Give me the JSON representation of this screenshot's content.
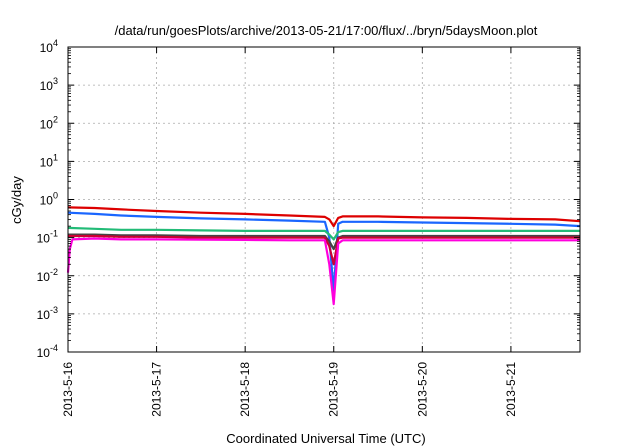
{
  "chart_data": {
    "type": "line",
    "title": "/data/run/goesPlots/archive/2013-05-21/17:00/flux/../bryn/5daysMoon.plot",
    "xlabel": "Coordinated Universal Time (UTC)",
    "ylabel": "cGy/day",
    "yscale": "log",
    "ylim": [
      0.0001,
      10000
    ],
    "xlim": [
      0,
      5.78
    ],
    "grid": true,
    "x_ticks": [
      {
        "value": 0,
        "label": "2013-5-16"
      },
      {
        "value": 1,
        "label": "2013-5-17"
      },
      {
        "value": 2,
        "label": "2013-5-18"
      },
      {
        "value": 3,
        "label": "2013-5-19"
      },
      {
        "value": 4,
        "label": "2013-5-20"
      },
      {
        "value": 5,
        "label": "2013-5-21"
      }
    ],
    "y_ticks": [
      {
        "value": 0.0001,
        "base": "10",
        "exp": "-4"
      },
      {
        "value": 0.001,
        "base": "10",
        "exp": "-3"
      },
      {
        "value": 0.01,
        "base": "10",
        "exp": "-2"
      },
      {
        "value": 0.1,
        "base": "10",
        "exp": "-1"
      },
      {
        "value": 1,
        "base": "10",
        "exp": "0"
      },
      {
        "value": 10,
        "base": "10",
        "exp": "1"
      },
      {
        "value": 100,
        "base": "10",
        "exp": "2"
      },
      {
        "value": 1000,
        "base": "10",
        "exp": "3"
      },
      {
        "value": 10000,
        "base": "10",
        "exp": "4"
      }
    ],
    "series": [
      {
        "color": "#dd0000",
        "x": [
          0,
          0.3,
          0.6,
          1.0,
          1.5,
          2.0,
          2.5,
          2.9,
          2.95,
          3.0,
          3.05,
          3.1,
          3.5,
          4.0,
          4.5,
          5.0,
          5.5,
          5.78
        ],
        "y": [
          0.62,
          0.6,
          0.55,
          0.5,
          0.45,
          0.42,
          0.38,
          0.35,
          0.3,
          0.2,
          0.33,
          0.36,
          0.36,
          0.34,
          0.33,
          0.31,
          0.3,
          0.27
        ]
      },
      {
        "color": "#1a66ff",
        "x": [
          0,
          0.3,
          0.6,
          1.0,
          1.5,
          2.0,
          2.5,
          2.9,
          2.95,
          3.0,
          3.05,
          3.1,
          3.5,
          4.0,
          4.5,
          5.0,
          5.5,
          5.78
        ],
        "y": [
          0.45,
          0.42,
          0.38,
          0.35,
          0.32,
          0.3,
          0.28,
          0.26,
          0.1,
          0.004,
          0.23,
          0.26,
          0.26,
          0.25,
          0.24,
          0.23,
          0.22,
          0.2
        ]
      },
      {
        "color": "#22bb77",
        "x": [
          0,
          0.3,
          0.6,
          1.0,
          1.5,
          2.0,
          2.5,
          2.9,
          2.95,
          3.0,
          3.05,
          3.1,
          3.5,
          4.0,
          4.5,
          5.0,
          5.5,
          5.78
        ],
        "y": [
          0.18,
          0.17,
          0.16,
          0.16,
          0.155,
          0.15,
          0.15,
          0.15,
          0.12,
          0.09,
          0.14,
          0.15,
          0.15,
          0.15,
          0.15,
          0.15,
          0.15,
          0.15
        ]
      },
      {
        "color": "#444444",
        "x": [
          0,
          0.3,
          0.6,
          1.0,
          1.5,
          2.0,
          2.5,
          2.9,
          2.95,
          3.0,
          3.05,
          3.1,
          3.5,
          4.0,
          4.5,
          5.0,
          5.5,
          5.78
        ],
        "y": [
          0.12,
          0.12,
          0.115,
          0.115,
          0.11,
          0.11,
          0.11,
          0.11,
          0.08,
          0.05,
          0.1,
          0.11,
          0.11,
          0.11,
          0.11,
          0.11,
          0.11,
          0.11
        ]
      },
      {
        "color": "#cc0033",
        "x": [
          0,
          0.3,
          0.6,
          1.0,
          1.5,
          2.0,
          2.5,
          2.9,
          2.95,
          3.0,
          3.05,
          3.1,
          3.5,
          4.0,
          4.5,
          5.0,
          5.5,
          5.78
        ],
        "y": [
          0.11,
          0.11,
          0.105,
          0.105,
          0.1,
          0.1,
          0.1,
          0.1,
          0.06,
          0.02,
          0.095,
          0.1,
          0.1,
          0.1,
          0.1,
          0.1,
          0.1,
          0.1
        ]
      },
      {
        "color": "#ff00dd",
        "x": [
          0,
          0.02,
          0.05,
          0.3,
          0.6,
          1.0,
          1.5,
          2.0,
          2.5,
          2.9,
          2.95,
          3.0,
          3.05,
          3.1,
          3.5,
          4.0,
          4.5,
          5.0,
          5.5,
          5.78
        ],
        "y": [
          0.012,
          0.05,
          0.09,
          0.095,
          0.09,
          0.09,
          0.088,
          0.087,
          0.085,
          0.085,
          0.02,
          0.0018,
          0.07,
          0.085,
          0.085,
          0.085,
          0.085,
          0.085,
          0.085,
          0.085
        ]
      }
    ]
  }
}
